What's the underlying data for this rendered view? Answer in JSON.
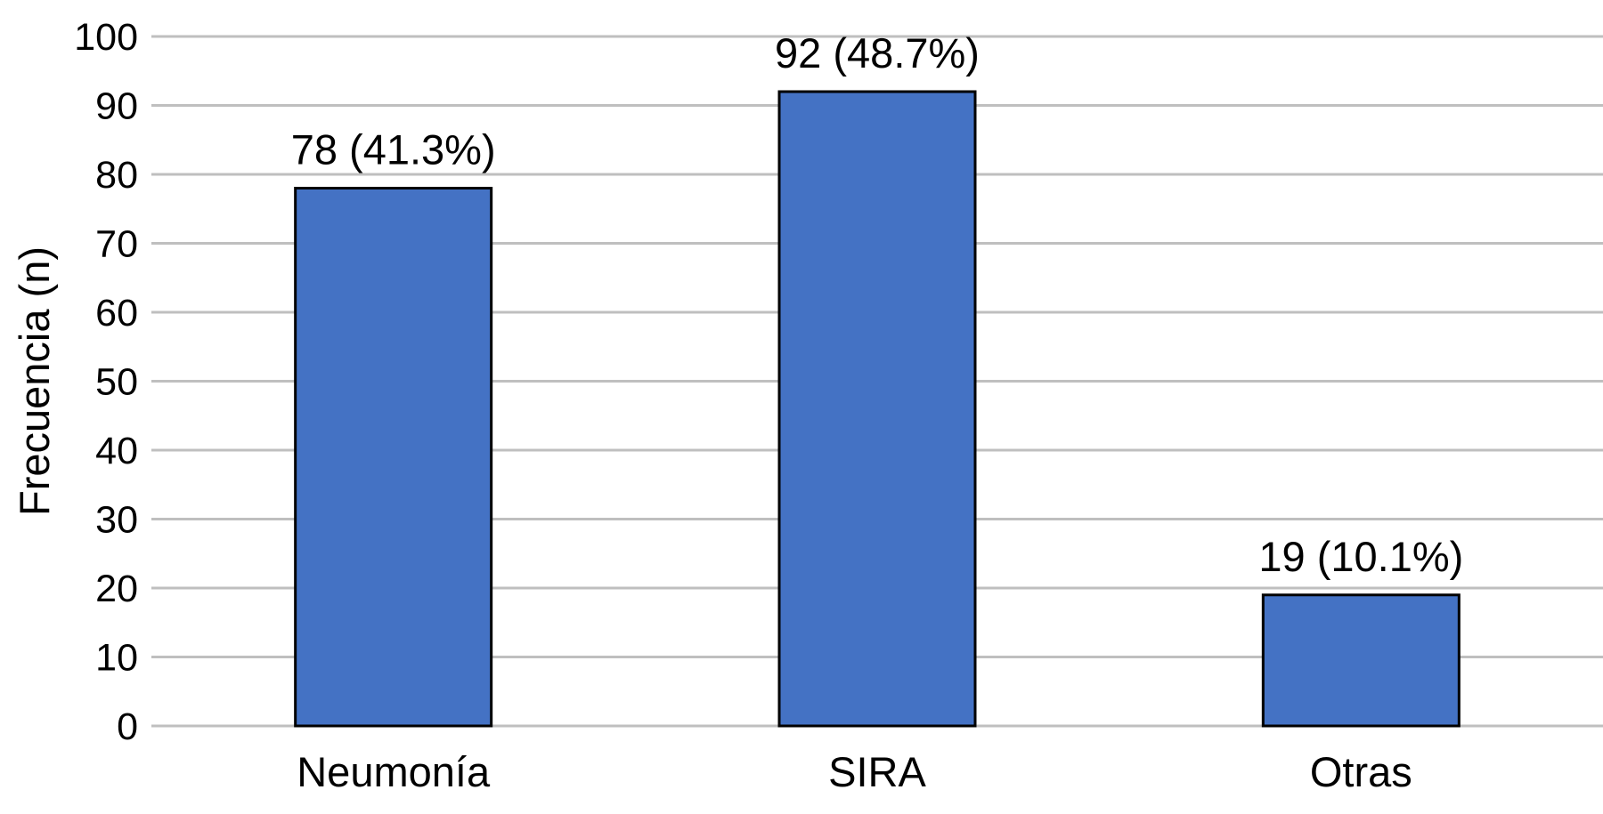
{
  "chart_data": {
    "type": "bar",
    "categories": [
      "Neumonía",
      "SIRA",
      "Otras"
    ],
    "values": [
      78,
      92,
      19
    ],
    "data_labels": [
      "78 (41.3%)",
      "92 (48.7%)",
      "19 (10.1%)"
    ],
    "xlabel": "",
    "ylabel": "Frecuencia (n)",
    "ylim": [
      0,
      100
    ],
    "yticks": [
      0,
      10,
      20,
      30,
      40,
      50,
      60,
      70,
      80,
      90,
      100
    ],
    "grid": true,
    "legend": "none",
    "colors": {
      "bar_fill": "#4472C4",
      "bar_edge": "#000000",
      "grid": "#BFBFBF"
    }
  }
}
